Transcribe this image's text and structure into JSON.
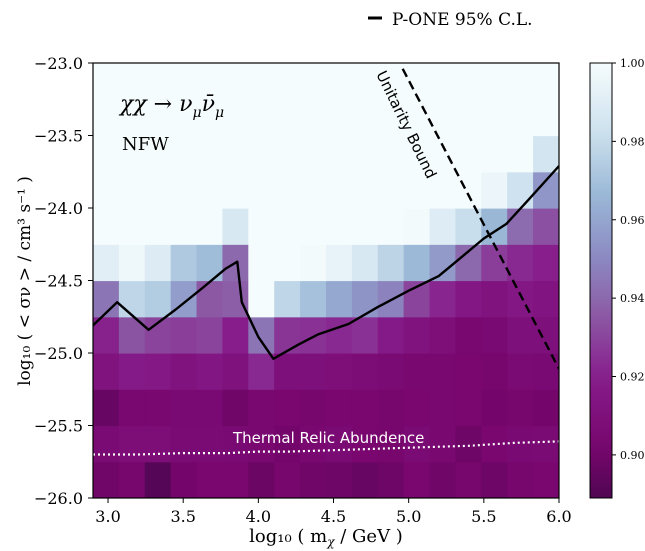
{
  "chart_data": {
    "type": "heatmap",
    "title": "",
    "xlabel": "log₁₀ ( m",
    "xlabel_sub": "χ",
    "xlabel_tail": " / GeV )",
    "ylabel": "log₁₀ ( < σν > / cm³ s⁻¹ )",
    "xlim": [
      2.9,
      6.0
    ],
    "ylim": [
      -26.0,
      -23.0
    ],
    "x_ticks": [
      3.0,
      3.5,
      4.0,
      4.5,
      5.0,
      5.5,
      6.0
    ],
    "x_tick_labels": [
      "3.0",
      "3.5",
      "4.0",
      "4.5",
      "5.0",
      "5.5",
      "6.0"
    ],
    "y_ticks": [
      -26.0,
      -25.5,
      -25.0,
      -24.5,
      -24.0,
      -23.5,
      -23.0
    ],
    "y_tick_labels": [
      "−26.0",
      "−25.5",
      "−25.0",
      "−24.5",
      "−24.0",
      "−23.5",
      "−23.0"
    ],
    "colorbar": {
      "range": [
        0.889,
        1.0
      ],
      "ticks": [
        0.9,
        0.92,
        0.94,
        0.96,
        0.98,
        1.0
      ],
      "tick_labels": [
        "0.90",
        "0.92",
        "0.94",
        "0.96",
        "0.98",
        "1.00"
      ]
    },
    "heatmap": {
      "x_start": 2.9,
      "x_step": 0.1722,
      "y_rows": [
        -25.875,
        -25.625,
        -25.375,
        -25.125,
        -24.875,
        -24.625,
        -24.375,
        -24.125,
        -23.875,
        -23.625,
        -23.375,
        -23.125
      ],
      "rows": [
        [
          0.9,
          0.902,
          0.891,
          0.901,
          0.903,
          0.903,
          0.898,
          0.902,
          0.9,
          0.899,
          0.897,
          0.899,
          0.903,
          0.9,
          0.902,
          0.899,
          0.902,
          0.903
        ],
        [
          0.906,
          0.908,
          0.908,
          0.906,
          0.906,
          0.905,
          0.904,
          0.901,
          0.904,
          0.906,
          0.903,
          0.902,
          0.906,
          0.904,
          0.899,
          0.903,
          0.905,
          0.906
        ],
        [
          0.897,
          0.904,
          0.904,
          0.905,
          0.905,
          0.9,
          0.904,
          0.903,
          0.902,
          0.903,
          0.903,
          0.902,
          0.903,
          0.904,
          0.903,
          0.901,
          0.902,
          0.901
        ],
        [
          0.912,
          0.917,
          0.916,
          0.912,
          0.914,
          0.911,
          0.923,
          0.91,
          0.91,
          0.909,
          0.907,
          0.906,
          0.904,
          0.904,
          0.903,
          0.902,
          0.906,
          0.905
        ],
        [
          0.921,
          0.934,
          0.93,
          0.928,
          0.93,
          0.919,
          0.944,
          0.926,
          0.925,
          0.923,
          0.925,
          0.917,
          0.912,
          0.909,
          0.904,
          0.905,
          0.91,
          0.91
        ],
        [
          0.944,
          0.978,
          0.974,
          0.957,
          0.935,
          0.937,
          1.0,
          0.978,
          0.97,
          0.961,
          0.954,
          0.948,
          0.93,
          0.922,
          0.915,
          0.912,
          0.915,
          0.913
        ],
        [
          0.991,
          0.997,
          0.989,
          0.973,
          0.968,
          0.94,
          1.0,
          1.0,
          0.999,
          0.994,
          0.987,
          0.977,
          0.967,
          0.956,
          0.94,
          0.928,
          0.923,
          0.92
        ],
        [
          1.0,
          1.0,
          1.0,
          1.0,
          1.0,
          0.987,
          1.0,
          1.0,
          1.0,
          1.0,
          1.0,
          1.0,
          0.999,
          0.99,
          0.981,
          0.966,
          0.941,
          0.933
        ],
        [
          1.0,
          1.0,
          1.0,
          1.0,
          1.0,
          1.0,
          1.0,
          1.0,
          1.0,
          1.0,
          1.0,
          1.0,
          1.0,
          1.0,
          1.0,
          0.996,
          0.983,
          0.955
        ],
        [
          1.0,
          1.0,
          1.0,
          1.0,
          1.0,
          1.0,
          1.0,
          1.0,
          1.0,
          1.0,
          1.0,
          1.0,
          1.0,
          1.0,
          1.0,
          1.0,
          1.0,
          0.985
        ],
        [
          1.0,
          1.0,
          1.0,
          1.0,
          1.0,
          1.0,
          1.0,
          1.0,
          1.0,
          1.0,
          1.0,
          1.0,
          1.0,
          1.0,
          1.0,
          1.0,
          1.0,
          1.0
        ],
        [
          1.0,
          1.0,
          1.0,
          1.0,
          1.0,
          1.0,
          1.0,
          1.0,
          1.0,
          1.0,
          1.0,
          1.0,
          1.0,
          1.0,
          1.0,
          1.0,
          1.0,
          1.0
        ]
      ]
    },
    "series": [
      {
        "name": "P-ONE 95% C.L.",
        "style": "solid",
        "color": "#000000",
        "x": [
          2.9,
          3.06,
          3.27,
          3.45,
          3.63,
          3.78,
          3.86,
          3.89,
          4.0,
          4.1,
          4.27,
          4.4,
          4.6,
          4.8,
          5.0,
          5.2,
          5.35,
          5.5,
          5.65,
          5.8,
          6.0
        ],
        "y": [
          -24.81,
          -24.65,
          -24.84,
          -24.7,
          -24.55,
          -24.42,
          -24.37,
          -24.65,
          -24.89,
          -25.04,
          -24.94,
          -24.87,
          -24.8,
          -24.68,
          -24.57,
          -24.47,
          -24.34,
          -24.21,
          -24.11,
          -23.94,
          -23.71
        ]
      },
      {
        "name": "Unitarity Bound",
        "style": "dashed",
        "color": "#000000",
        "x": [
          4.96,
          6.0
        ],
        "y": [
          -23.04,
          -25.11
        ]
      },
      {
        "name": "Thermal Relic Abundence",
        "style": "dotted",
        "color": "#ffffff",
        "x": [
          2.9,
          3.2,
          3.5,
          3.8,
          4.0,
          4.2,
          4.5,
          4.8,
          5.1,
          5.4,
          5.7,
          6.0
        ],
        "y": [
          -25.7,
          -25.7,
          -25.69,
          -25.69,
          -25.68,
          -25.68,
          -25.67,
          -25.66,
          -25.65,
          -25.64,
          -25.62,
          -25.61
        ]
      }
    ],
    "legend": {
      "position": "top-right",
      "label": "P-ONE 95% C.L."
    },
    "annotations": {
      "process": "χχ → ν",
      "halo_profile": "NFW",
      "unitarity_label": "Unitarity Bound",
      "thermal_label": "Thermal Relic Abundence"
    }
  }
}
